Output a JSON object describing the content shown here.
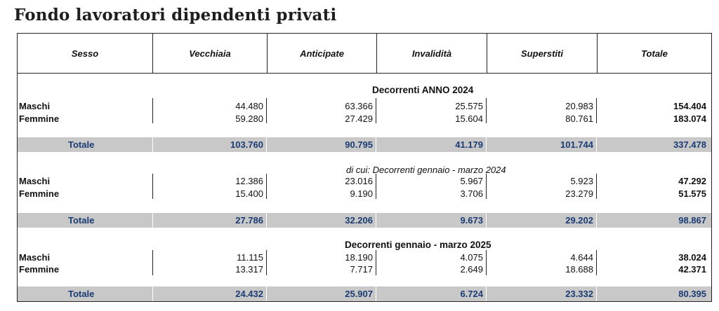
{
  "title": "Fondo lavoratori dipendenti privati",
  "headers": [
    "Sesso",
    "Vecchiaia",
    "Anticipate",
    "Invalidità",
    "Superstiti",
    "Totale"
  ],
  "sections": [
    {
      "title": "Decorrenti ANNO 2024",
      "rows": [
        {
          "label": "Maschi",
          "values": [
            "44.480",
            "63.366",
            "25.575",
            "20.983",
            "154.404"
          ]
        },
        {
          "label": "Femmine",
          "values": [
            "59.280",
            "27.429",
            "15.604",
            "80.761",
            "183.074"
          ]
        }
      ],
      "total": {
        "label": "Totale",
        "values": [
          "103.760",
          "90.795",
          "41.179",
          "101.744",
          "337.478"
        ]
      }
    },
    {
      "title": "di cui:  Decorrenti gennaio - marzo 2024",
      "rows": [
        {
          "label": "Maschi",
          "values": [
            "12.386",
            "23.016",
            "5.967",
            "5.923",
            "47.292"
          ]
        },
        {
          "label": "Femmine",
          "values": [
            "15.400",
            "9.190",
            "3.706",
            "23.279",
            "51.575"
          ]
        }
      ],
      "total": {
        "label": "Totale",
        "values": [
          "27.786",
          "32.206",
          "9.673",
          "29.202",
          "98.867"
        ]
      }
    },
    {
      "title": "Decorrenti gennaio - marzo 2025",
      "rows": [
        {
          "label": "Maschi",
          "values": [
            "11.115",
            "18.190",
            "4.075",
            "4.644",
            "38.024"
          ]
        },
        {
          "label": "Femmine",
          "values": [
            "13.317",
            "7.717",
            "2.649",
            "18.688",
            "42.371"
          ]
        }
      ],
      "total": {
        "label": "Totale",
        "values": [
          "24.432",
          "25.907",
          "6.724",
          "23.332",
          "80.395"
        ]
      }
    }
  ],
  "colors": {
    "total_row_bg": "#c8c8c8",
    "total_text": "#1a3b73"
  }
}
